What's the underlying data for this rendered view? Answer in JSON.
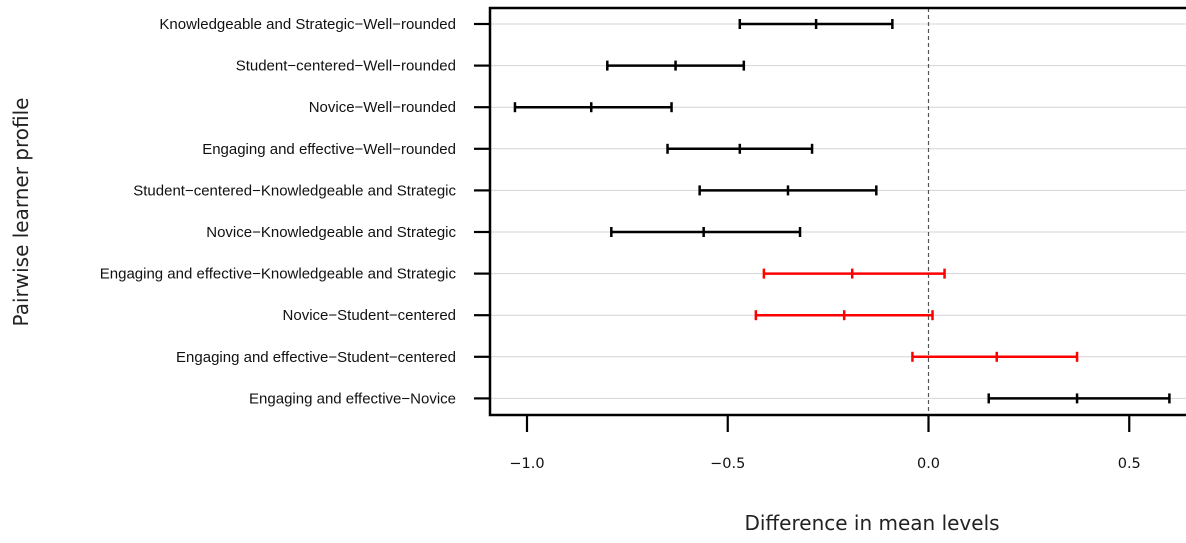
{
  "chart_data": {
    "type": "errorbar",
    "title": "",
    "xlabel": "Difference in mean levels",
    "ylabel": "Pairwise learner profile",
    "xlim": [
      -1.1,
      0.63
    ],
    "xticks": [
      -1.0,
      -0.5,
      0.0,
      0.5
    ],
    "xtick_labels": [
      "−1.0",
      "−0.5",
      "0.0",
      "0.5"
    ],
    "reference_line": 0,
    "grid": "horizontal",
    "colors": {
      "default": "#000000",
      "highlight": "#ff0000"
    },
    "comparisons": [
      {
        "label": "Knowledgeable and Strategic−Well−rounded",
        "lower": -0.47,
        "estimate": -0.28,
        "upper": -0.09,
        "color": "#000000"
      },
      {
        "label": "Student−centered−Well−rounded",
        "lower": -0.8,
        "estimate": -0.63,
        "upper": -0.46,
        "color": "#000000"
      },
      {
        "label": "Novice−Well−rounded",
        "lower": -1.03,
        "estimate": -0.84,
        "upper": -0.64,
        "color": "#000000"
      },
      {
        "label": "Engaging and effective−Well−rounded",
        "lower": -0.65,
        "estimate": -0.47,
        "upper": -0.29,
        "color": "#000000"
      },
      {
        "label": "Student−centered−Knowledgeable and Strategic",
        "lower": -0.57,
        "estimate": -0.35,
        "upper": -0.13,
        "color": "#000000"
      },
      {
        "label": "Novice−Knowledgeable and Strategic",
        "lower": -0.79,
        "estimate": -0.56,
        "upper": -0.32,
        "color": "#000000"
      },
      {
        "label": "Engaging and effective−Knowledgeable and Strategic",
        "lower": -0.41,
        "estimate": -0.19,
        "upper": 0.04,
        "color": "#ff0000"
      },
      {
        "label": "Novice−Student−centered",
        "lower": -0.43,
        "estimate": -0.21,
        "upper": 0.01,
        "color": "#ff0000"
      },
      {
        "label": "Engaging and effective−Student−centered",
        "lower": -0.04,
        "estimate": 0.17,
        "upper": 0.37,
        "color": "#ff0000"
      },
      {
        "label": "Engaging and effective−Novice",
        "lower": 0.15,
        "estimate": 0.37,
        "upper": 0.6,
        "color": "#000000"
      }
    ]
  }
}
